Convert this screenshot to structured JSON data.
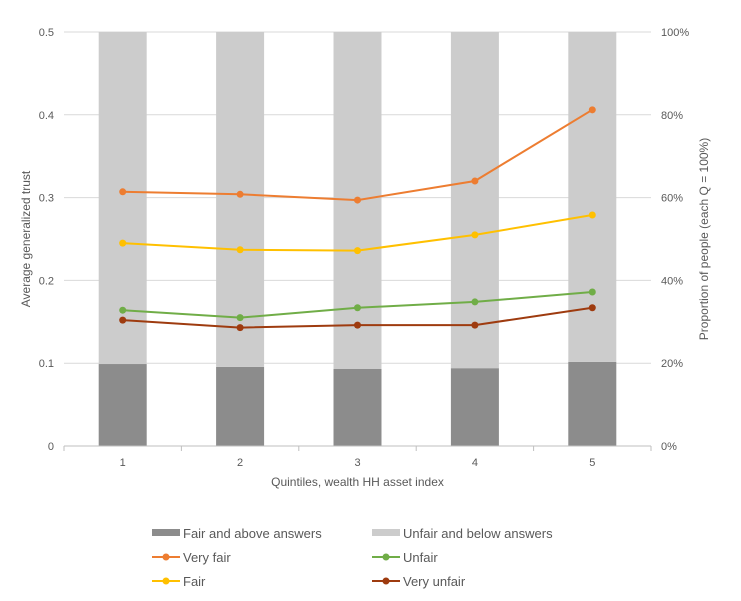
{
  "chart_data": {
    "type": "bar+line",
    "categories": [
      "1",
      "2",
      "3",
      "4",
      "5"
    ],
    "xlabel": "Quintiles, wealth HH asset index",
    "ylabel": "Average generalized trust",
    "y2label": "Proportion of people (each Q = 100%)",
    "ylim": [
      0,
      0.5
    ],
    "y2lim": [
      0,
      100
    ],
    "yticks": [
      "0",
      "0.1",
      "0.2",
      "0.3",
      "0.4",
      "0.5"
    ],
    "y2ticks": [
      "0%",
      "20%",
      "40%",
      "60%",
      "80%",
      "100%"
    ],
    "grid": true,
    "legend_position": "bottom",
    "bars": [
      {
        "name": "Fair and above answers",
        "color": "#8c8c8c",
        "values_pct": [
          19.8,
          19.1,
          18.6,
          18.8,
          20.3
        ]
      },
      {
        "name": "Unfair and below answers",
        "color": "#cccccc",
        "values_pct": [
          80.2,
          80.9,
          81.4,
          81.2,
          79.7
        ]
      }
    ],
    "series": [
      {
        "name": "Very fair",
        "color": "#ed7d31",
        "values": [
          0.307,
          0.304,
          0.297,
          0.32,
          0.406
        ]
      },
      {
        "name": "Fair",
        "color": "#ffc000",
        "values": [
          0.245,
          0.237,
          0.236,
          0.255,
          0.279
        ]
      },
      {
        "name": "Unfair",
        "color": "#70ad47",
        "values": [
          0.164,
          0.155,
          0.167,
          0.174,
          0.186
        ]
      },
      {
        "name": "Very unfair",
        "color": "#9e3b0f",
        "values": [
          0.152,
          0.143,
          0.146,
          0.146,
          0.167
        ]
      }
    ]
  }
}
